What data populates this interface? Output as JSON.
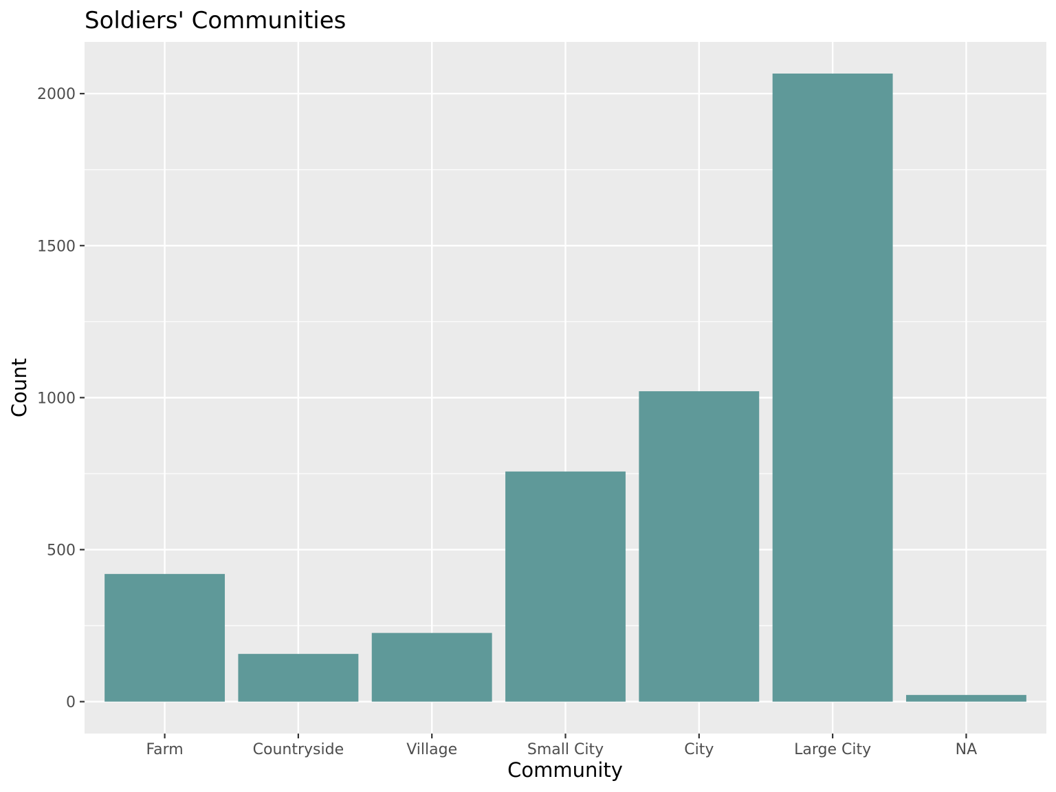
{
  "chart_data": {
    "type": "bar",
    "title": "Soldiers' Communities",
    "xlabel": "Community",
    "ylabel": "Count",
    "categories": [
      "Farm",
      "Countryside",
      "Village",
      "Small City",
      "City",
      "Large City",
      "NA"
    ],
    "values": [
      420,
      157,
      226,
      757,
      1021,
      2066,
      22
    ],
    "ylim": [
      -105,
      2170
    ],
    "yticks": [
      0,
      500,
      1000,
      1500,
      2000
    ],
    "ytick_labels": [
      "0",
      "500",
      "1000",
      "1500",
      "2000"
    ],
    "grid": true,
    "legend": "none",
    "colors": {
      "bar": "#5f9999",
      "panel": "#ebebeb",
      "grid": "#ffffff",
      "tick": "#333333"
    }
  }
}
